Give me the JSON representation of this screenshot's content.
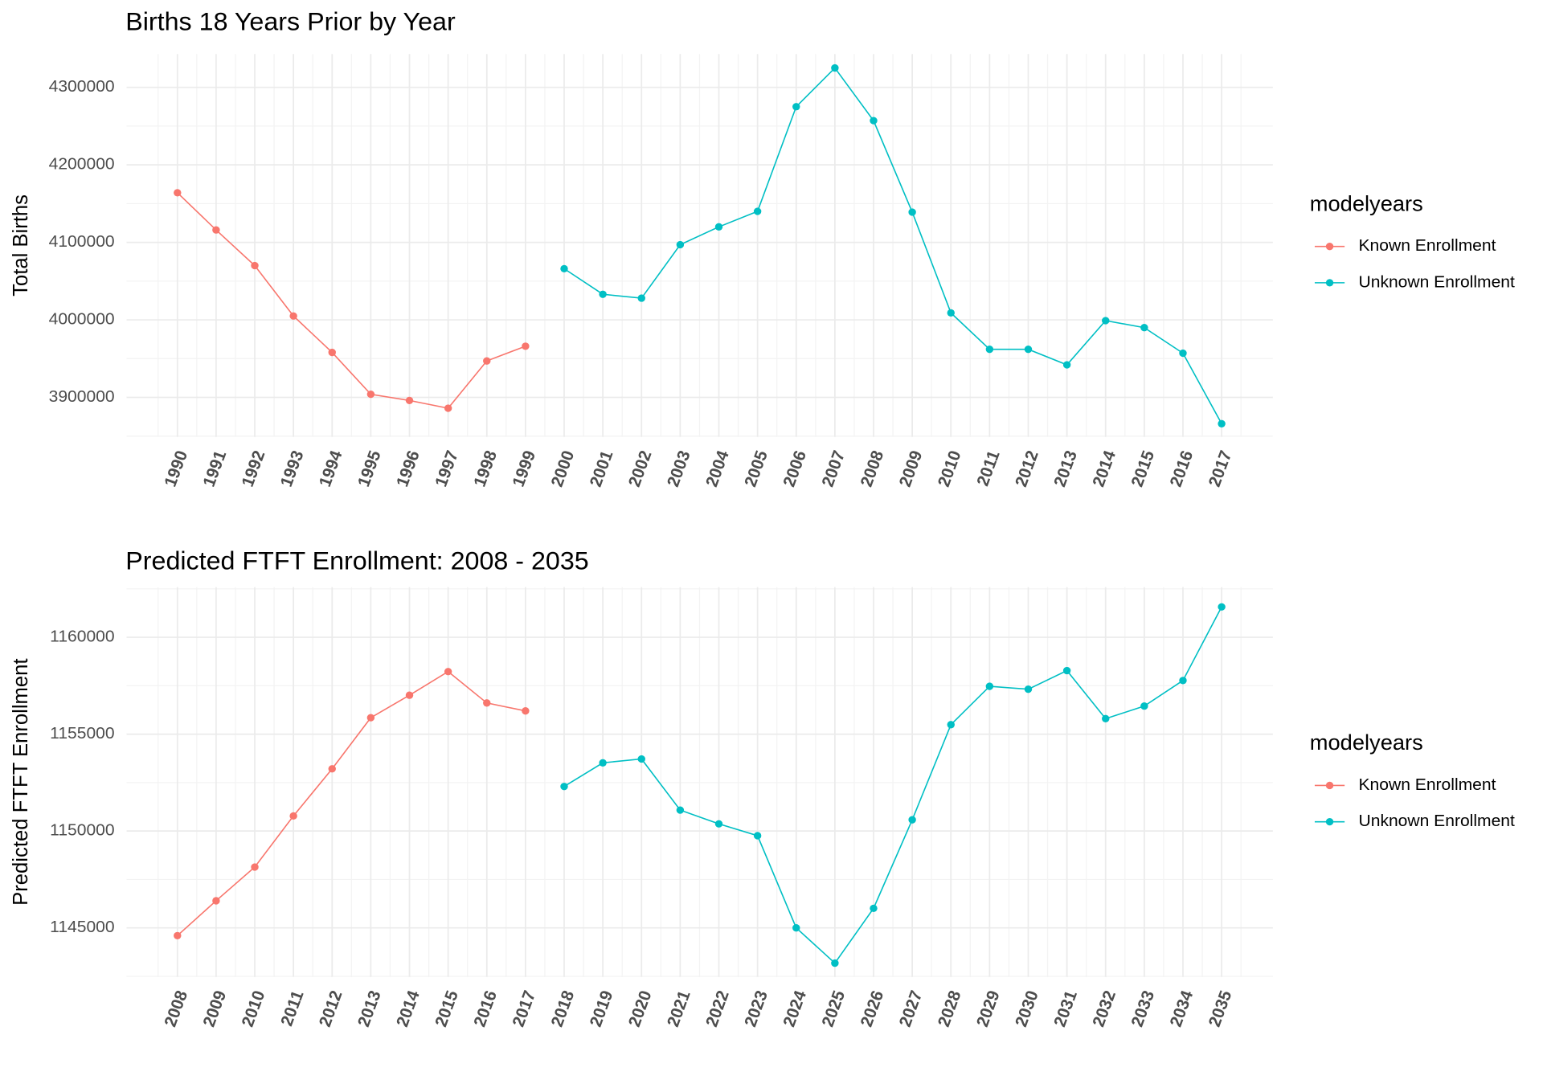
{
  "chart_data": [
    {
      "type": "line",
      "title": "Births 18 Years Prior by Year",
      "y_label": "Total Births",
      "legend_title": "modelyears",
      "categories": [
        "1990",
        "1991",
        "1992",
        "1993",
        "1994",
        "1995",
        "1996",
        "1997",
        "1998",
        "1999",
        "2000",
        "2001",
        "2002",
        "2003",
        "2004",
        "2005",
        "2006",
        "2007",
        "2008",
        "2009",
        "2010",
        "2011",
        "2012",
        "2013",
        "2014",
        "2015",
        "2016",
        "2017"
      ],
      "series": [
        {
          "name": "Known Enrollment",
          "color": "#F8766D",
          "values": [
            4164000,
            4116000,
            4070000,
            4005000,
            3958000,
            3904000,
            3896000,
            3886000,
            3947000,
            3966000,
            null,
            null,
            null,
            null,
            null,
            null,
            null,
            null,
            null,
            null,
            null,
            null,
            null,
            null,
            null,
            null,
            null,
            null
          ]
        },
        {
          "name": "Unknown Enrollment",
          "color": "#00BFC4",
          "values": [
            null,
            null,
            null,
            null,
            null,
            null,
            null,
            null,
            null,
            null,
            4066000,
            4033000,
            4028000,
            4097000,
            4120000,
            4140000,
            4275000,
            4325000,
            4257000,
            4139000,
            4009000,
            3962000,
            3962000,
            3942000,
            3999000,
            3990000,
            3957000,
            3866000
          ]
        }
      ],
      "ylim": [
        3849000,
        4343000
      ],
      "yticks": [
        3900000,
        4000000,
        4100000,
        4200000,
        4300000
      ],
      "grid": true
    },
    {
      "type": "line",
      "title": "Predicted FTFT Enrollment: 2008 - 2035",
      "y_label": "Predicted FTFT Enrollment",
      "legend_title": "modelyears",
      "categories": [
        "2008",
        "2009",
        "2010",
        "2011",
        "2012",
        "2013",
        "2014",
        "2015",
        "2016",
        "2017",
        "2018",
        "2019",
        "2020",
        "2021",
        "2022",
        "2023",
        "2024",
        "2025",
        "2026",
        "2027",
        "2028",
        "2029",
        "2030",
        "2031",
        "2032",
        "2033",
        "2034",
        "2035"
      ],
      "series": [
        {
          "name": "Known Enrollment",
          "color": "#F8766D",
          "values": [
            1144600,
            1146400,
            1148140,
            1150780,
            1153210,
            1155850,
            1157010,
            1158230,
            1156610,
            1156200,
            null,
            null,
            null,
            null,
            null,
            null,
            null,
            null,
            null,
            null,
            null,
            null,
            null,
            null,
            null,
            null,
            null,
            null
          ]
        },
        {
          "name": "Unknown Enrollment",
          "color": "#00BFC4",
          "values": [
            null,
            null,
            null,
            null,
            null,
            null,
            null,
            null,
            null,
            null,
            1152300,
            1153520,
            1153720,
            1151080,
            1150370,
            1149760,
            1145000,
            1143180,
            1146010,
            1150580,
            1155490,
            1157470,
            1157320,
            1158280,
            1155800,
            1156450,
            1157770,
            1161570
          ]
        }
      ],
      "ylim": [
        1142470,
        1162590
      ],
      "yticks": [
        1145000,
        1150000,
        1155000,
        1160000
      ],
      "grid": true
    }
  ]
}
